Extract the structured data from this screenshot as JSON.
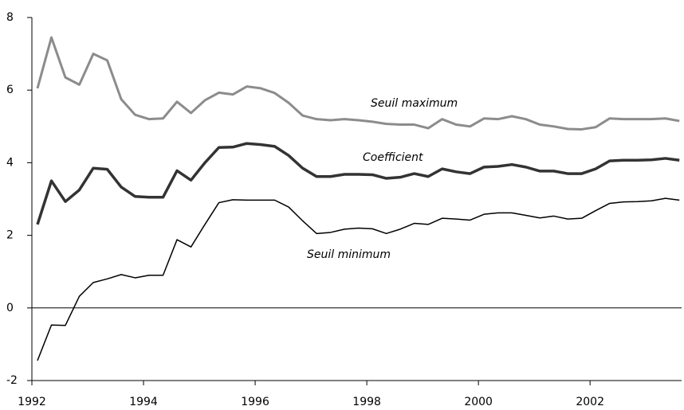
{
  "chart_data": {
    "type": "line",
    "x": [
      1992.1,
      1992.35,
      1992.6,
      1992.85,
      1993.1,
      1993.35,
      1993.6,
      1993.85,
      1994.1,
      1994.35,
      1994.6,
      1994.85,
      1995.1,
      1995.35,
      1995.6,
      1995.85,
      1996.1,
      1996.35,
      1996.6,
      1996.85,
      1997.1,
      1997.35,
      1997.6,
      1997.85,
      1998.1,
      1998.35,
      1998.6,
      1998.85,
      1999.1,
      1999.35,
      1999.6,
      1999.85,
      2000.1,
      2000.35,
      2000.6,
      2000.85,
      2001.1,
      2001.35,
      2001.6,
      2001.85,
      2002.1,
      2002.35,
      2002.6,
      2002.85,
      2003.1,
      2003.35,
      2003.6
    ],
    "series": [
      {
        "name": "Seuil maximum",
        "color": "#8c8c8c",
        "values": [
          6.05,
          7.45,
          6.35,
          6.15,
          7.0,
          6.82,
          5.75,
          5.32,
          5.2,
          5.22,
          5.68,
          5.37,
          5.72,
          5.93,
          5.88,
          6.1,
          6.05,
          5.92,
          5.65,
          5.3,
          5.2,
          5.17,
          5.2,
          5.17,
          5.13,
          5.07,
          5.05,
          5.05,
          4.95,
          5.2,
          5.05,
          5.0,
          5.22,
          5.2,
          5.28,
          5.2,
          5.05,
          5.0,
          4.93,
          4.92,
          4.98,
          5.22,
          5.2,
          5.2,
          5.2,
          5.22,
          5.15
        ]
      },
      {
        "name": "Coefficient",
        "color": "#333333",
        "values": [
          2.3,
          3.5,
          2.93,
          3.25,
          3.85,
          3.82,
          3.33,
          3.07,
          3.05,
          3.05,
          3.78,
          3.52,
          4.0,
          4.42,
          4.43,
          4.53,
          4.5,
          4.45,
          4.2,
          3.85,
          3.62,
          3.62,
          3.68,
          3.68,
          3.67,
          3.57,
          3.6,
          3.7,
          3.62,
          3.83,
          3.75,
          3.7,
          3.88,
          3.9,
          3.95,
          3.88,
          3.77,
          3.77,
          3.7,
          3.7,
          3.83,
          4.05,
          4.07,
          4.07,
          4.08,
          4.12,
          4.07
        ]
      },
      {
        "name": "Seuil minimum",
        "color": "#000000",
        "values": [
          -1.45,
          -0.47,
          -0.48,
          0.32,
          0.7,
          0.8,
          0.92,
          0.83,
          0.9,
          0.9,
          1.88,
          1.68,
          2.3,
          2.9,
          2.98,
          2.97,
          2.97,
          2.97,
          2.78,
          2.4,
          2.05,
          2.08,
          2.17,
          2.2,
          2.18,
          2.05,
          2.17,
          2.33,
          2.3,
          2.47,
          2.45,
          2.42,
          2.58,
          2.62,
          2.62,
          2.55,
          2.48,
          2.53,
          2.45,
          2.47,
          2.68,
          2.88,
          2.92,
          2.93,
          2.95,
          3.02,
          2.97
        ]
      }
    ],
    "xlim": [
      1992,
      2003.64
    ],
    "xticks": [
      1992,
      1994,
      1996,
      1998,
      2000,
      2002
    ],
    "ylim": [
      -2,
      8
    ],
    "yticks": [
      -2,
      0,
      2,
      4,
      6,
      8
    ],
    "zero_line": true
  }
}
